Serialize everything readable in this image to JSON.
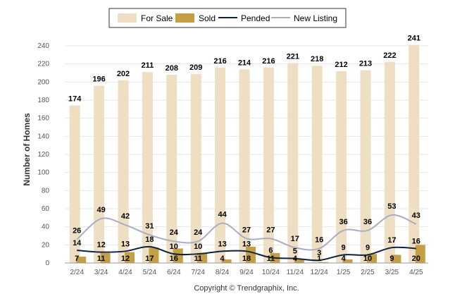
{
  "chart_data": {
    "type": "bar",
    "categories": [
      "2/24",
      "3/24",
      "4/24",
      "5/24",
      "6/24",
      "7/24",
      "8/24",
      "9/24",
      "10/24",
      "11/24",
      "12/24",
      "1/25",
      "2/25",
      "3/25",
      "4/25"
    ],
    "series": [
      {
        "name": "For Sale",
        "kind": "bar",
        "values": [
          174,
          196,
          202,
          211,
          208,
          209,
          216,
          214,
          216,
          221,
          218,
          212,
          213,
          222,
          241
        ]
      },
      {
        "name": "Sold",
        "kind": "bar",
        "values": [
          7,
          11,
          12,
          17,
          16,
          11,
          4,
          18,
          11,
          4,
          1,
          4,
          10,
          9,
          20
        ]
      },
      {
        "name": "Pended",
        "kind": "line",
        "values": [
          14,
          12,
          13,
          18,
          10,
          10,
          13,
          13,
          6,
          5,
          3,
          9,
          9,
          17,
          16
        ]
      },
      {
        "name": "New Listing",
        "kind": "line",
        "values": [
          26,
          49,
          42,
          31,
          24,
          24,
          44,
          27,
          27,
          17,
          16,
          36,
          36,
          53,
          43
        ]
      }
    ],
    "ylabel": "Number of Homes",
    "xlabel": "",
    "ylim": [
      0,
      240
    ],
    "yticks": [
      0,
      20,
      40,
      60,
      80,
      100,
      120,
      140,
      160,
      180,
      200,
      220,
      240
    ],
    "legend_position": "top-center",
    "grid": true,
    "colors": {
      "for_sale": "#EEDFC3",
      "sold": "#C4A043",
      "pended": "#0E2244",
      "new_listing": "#A6AEC4"
    },
    "copyright": "Copyright © Trendgraphix, Inc."
  }
}
